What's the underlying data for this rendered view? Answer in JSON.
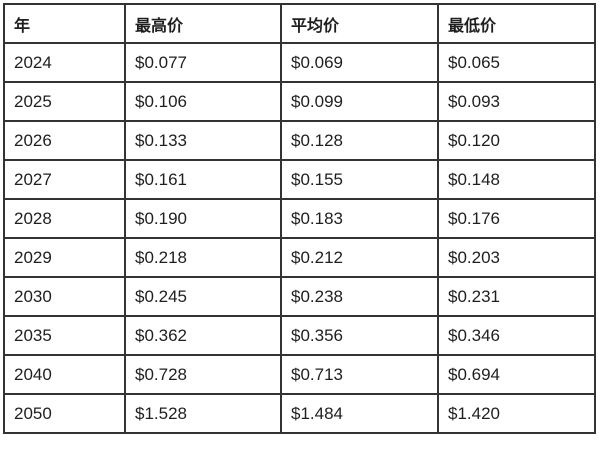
{
  "colors": {
    "background": "#ffffff",
    "border": "#333333",
    "text": "#1f1f1f"
  },
  "table": {
    "headers": [
      "年",
      "最高价",
      "平均价",
      "最低价"
    ],
    "rows": [
      [
        "2024",
        "$0.077",
        "$0.069",
        "$0.065"
      ],
      [
        "2025",
        "$0.106",
        "$0.099",
        "$0.093"
      ],
      [
        "2026",
        "$0.133",
        "$0.128",
        "$0.120"
      ],
      [
        "2027",
        "$0.161",
        "$0.155",
        "$0.148"
      ],
      [
        "2028",
        "$0.190",
        "$0.183",
        "$0.176"
      ],
      [
        "2029",
        "$0.218",
        "$0.212",
        "$0.203"
      ],
      [
        "2030",
        "$0.245",
        "$0.238",
        "$0.231"
      ],
      [
        "2035",
        "$0.362",
        "$0.356",
        "$0.346"
      ],
      [
        "2040",
        "$0.728",
        "$0.713",
        "$0.694"
      ],
      [
        "2050",
        "$1.528",
        "$1.484",
        "$1.420"
      ]
    ]
  },
  "chart_data": {
    "type": "table",
    "title": "",
    "columns": [
      "年",
      "最高价",
      "平均价",
      "最低价"
    ],
    "categories": [
      "2024",
      "2025",
      "2026",
      "2027",
      "2028",
      "2029",
      "2030",
      "2035",
      "2040",
      "2050"
    ],
    "series": [
      {
        "name": "最高价",
        "values": [
          0.077,
          0.106,
          0.133,
          0.161,
          0.19,
          0.218,
          0.245,
          0.362,
          0.728,
          1.528
        ]
      },
      {
        "name": "平均价",
        "values": [
          0.069,
          0.099,
          0.128,
          0.155,
          0.183,
          0.212,
          0.238,
          0.356,
          0.713,
          1.484
        ]
      },
      {
        "name": "最低价",
        "values": [
          0.065,
          0.093,
          0.12,
          0.148,
          0.176,
          0.203,
          0.231,
          0.346,
          0.694,
          1.42
        ]
      }
    ],
    "currency": "USD",
    "value_format": "$0.000"
  }
}
